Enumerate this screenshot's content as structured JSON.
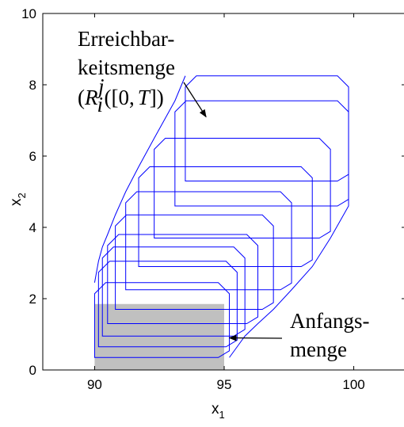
{
  "chart_data": {
    "type": "line",
    "title": "",
    "xlabel": "x",
    "xlabel_sub": "1",
    "ylabel": "x",
    "ylabel_sub": "2",
    "xlim": [
      88,
      102
    ],
    "ylim": [
      0,
      10
    ],
    "xticks": [
      90,
      95,
      100
    ],
    "yticks": [
      0,
      2,
      4,
      6,
      8,
      10
    ],
    "grid": false,
    "colors": {
      "sets": "#0000ff",
      "initial_set": "#c0c0c0",
      "axes": "#000000"
    },
    "initial_set": {
      "x": [
        90,
        95
      ],
      "y": [
        0,
        1.85
      ]
    },
    "reachable_sets": [
      {
        "x": [
          90,
          95.2
        ],
        "y": [
          0.35,
          2.45
        ],
        "xr": 95.2
      },
      {
        "x": [
          90.15,
          95.5
        ],
        "y": [
          0.65,
          3.05
        ],
        "xr": 95.5
      },
      {
        "x": [
          90.3,
          95.8
        ],
        "y": [
          0.95,
          3.45
        ],
        "xr": 95.8
      },
      {
        "x": [
          90.5,
          96.3
        ],
        "y": [
          1.3,
          3.8
        ],
        "xr": 96.3
      },
      {
        "x": [
          90.8,
          96.9
        ],
        "y": [
          1.7,
          4.35
        ],
        "xr": 96.9
      },
      {
        "x": [
          91.2,
          97.6
        ],
        "y": [
          2.25,
          5.0
        ],
        "xr": 97.6
      },
      {
        "x": [
          91.7,
          98.4
        ],
        "y": [
          2.9,
          5.7
        ],
        "xr": 98.4
      },
      {
        "x": [
          92.3,
          99.1
        ],
        "y": [
          3.7,
          6.5
        ],
        "xr": 99.1
      },
      {
        "x": [
          93.1,
          99.8
        ],
        "y": [
          4.6,
          7.55
        ],
        "xr": 99.8
      },
      {
        "x": [
          93.5,
          99.8
        ],
        "y": [
          5.3,
          8.25
        ],
        "xr": 99.8
      }
    ],
    "annotations": [
      {
        "id": "reach",
        "lines": [
          "Erreichbar-",
          "keitsmenge"
        ],
        "formula": {
          "open": "(",
          "R": "R",
          "sub": "i",
          "sup": "j",
          "arg": "([0,",
          "T": "T",
          "close": "])"
        },
        "arrow_to": [
          94.3,
          7.1
        ]
      },
      {
        "id": "initial",
        "lines": [
          "Anfangs-",
          "menge"
        ],
        "arrow_to": [
          95.2,
          0.9
        ]
      }
    ]
  }
}
